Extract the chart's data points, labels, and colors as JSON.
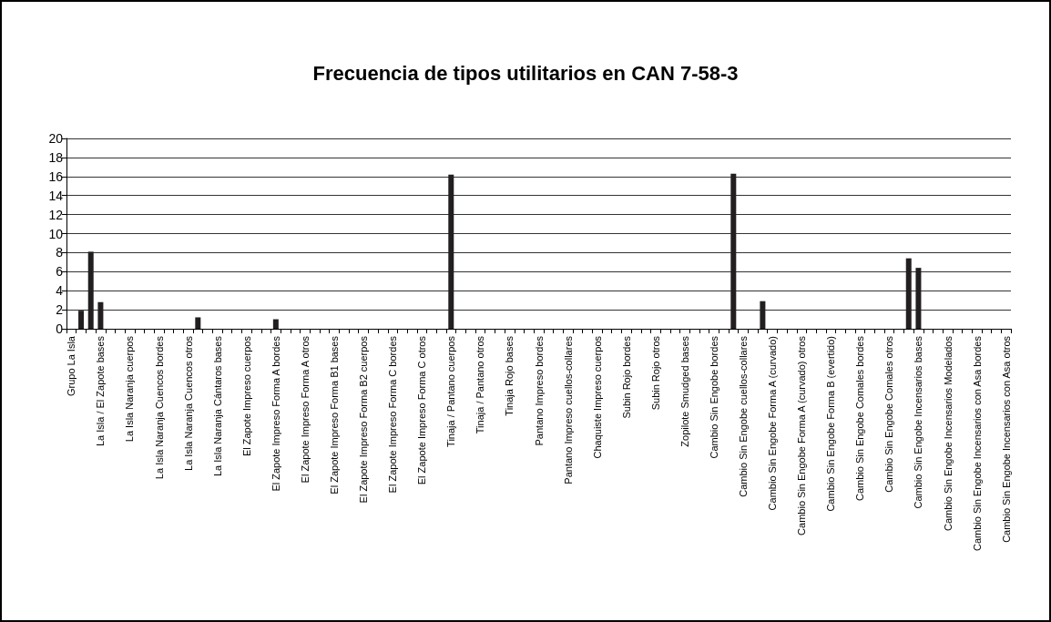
{
  "chart_data": {
    "type": "bar",
    "title": "Frecuencia de tipos utilitarios en CAN 7-58-3",
    "categories": [
      "Grupo La Isla",
      null,
      null,
      "La Isla / El Zapote bases",
      null,
      null,
      "La Isla Naranja cuerpos",
      null,
      null,
      "La Isla Naranja Cuencos bordes",
      null,
      null,
      "La Isla Naranja Cuencos otros",
      null,
      null,
      "La Isla Naranja Cántaros bases",
      null,
      null,
      "El Zapote Impreso cuerpos",
      null,
      null,
      "El Zapote Impreso Forma A bordes",
      null,
      null,
      "El Zapote Impreso Forma A otros",
      null,
      null,
      "El Zapote Impreso Forma B1 bases",
      null,
      null,
      "El Zapote Impreso Forma B2 cuerpos",
      null,
      null,
      "El Zapote Impreso Forma C bordes",
      null,
      null,
      "El Zapote Impreso Forma C otros",
      null,
      null,
      "Tinaja / Pantano cuerpos",
      null,
      null,
      "Tinaja / Pantano otros",
      null,
      null,
      "Tinaja Rojo bases",
      null,
      null,
      "Pantano Impreso bordes",
      null,
      null,
      "Pantano Impreso cuellos-collares",
      null,
      null,
      "Chaquiste Impreso cuerpos",
      null,
      null,
      "Subin Rojo bordes",
      null,
      null,
      "Subin Rojo otros",
      null,
      null,
      "Zopilote Smudged bases",
      null,
      null,
      "Cambio Sin Engobe bordes",
      null,
      null,
      "Cambio Sin Engobe cuellos-collares",
      null,
      null,
      "Cambio Sin Engobe Forma A (curvado)",
      null,
      null,
      "Cambio Sin Engobe Forma A (curvado) otros",
      null,
      null,
      "Cambio Sin Engobe Forma B (evertido)",
      null,
      null,
      "Cambio Sin Engobe Comales bordes",
      null,
      null,
      "Cambio Sin Engobe Comales otros",
      null,
      null,
      "Cambio Sin Engobe Incensarios bases",
      null,
      null,
      "Cambio Sin Engobe Incensarios Modelados",
      null,
      null,
      "Cambio Sin Engobe Incensarios con Asa bordes",
      null,
      null,
      "Cambio Sin Engobe Incensarios con Asa otros"
    ],
    "values": [
      0,
      1.9,
      8.1,
      2.8,
      0,
      0,
      0,
      0,
      0,
      0,
      0,
      0,
      0,
      1.2,
      0,
      0,
      0,
      0,
      0,
      0,
      0,
      1.0,
      0,
      0,
      0,
      0,
      0,
      0,
      0,
      0,
      0,
      0,
      0,
      0,
      0,
      0,
      0,
      0,
      0,
      16.2,
      0,
      0,
      0,
      0,
      0,
      0,
      0,
      0,
      0,
      0,
      0,
      0,
      0,
      0,
      0,
      0,
      0,
      0,
      0,
      0,
      0,
      0,
      0,
      0,
      0,
      0,
      0,
      0,
      16.3,
      0,
      0,
      2.9,
      0,
      0,
      0,
      0,
      0,
      0,
      0,
      0,
      0,
      0,
      0,
      0,
      0,
      0,
      7.4,
      6.4,
      0,
      0,
      0,
      0,
      0,
      0,
      0,
      0,
      0
    ],
    "color": "#231f20",
    "ylim": [
      0,
      20
    ],
    "yticks": [
      0,
      2,
      4,
      6,
      8,
      10,
      12,
      14,
      16,
      18,
      20
    ],
    "grid": "y"
  }
}
